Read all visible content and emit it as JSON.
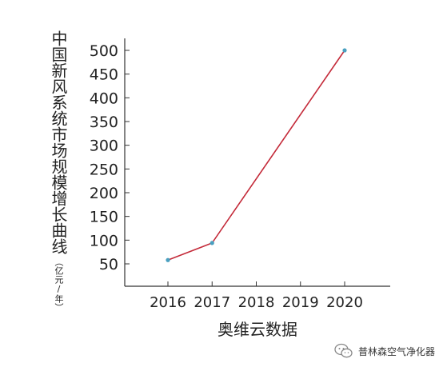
{
  "chart_data": {
    "type": "line",
    "x": [
      "2016",
      "2017",
      "2018",
      "2019",
      "2020"
    ],
    "y_ticks": [
      50,
      100,
      150,
      200,
      250,
      300,
      350,
      400,
      450,
      500
    ],
    "ylim": [
      0,
      530
    ],
    "ylabel": "中国新风系统市场规模增长曲线",
    "yunit": "（亿元/年）",
    "xlabel": "奥维云数据",
    "series": [
      {
        "points": [
          {
            "x": "2016",
            "y": 58
          },
          {
            "x": "2017",
            "y": 94
          },
          {
            "x": "2020",
            "y": 500
          }
        ],
        "color": "#c42b3a",
        "marker_color": "#4aa0c0"
      }
    ],
    "grid": false
  },
  "watermark": {
    "text": "普林森空气净化器",
    "icon": "wechat-icon"
  }
}
